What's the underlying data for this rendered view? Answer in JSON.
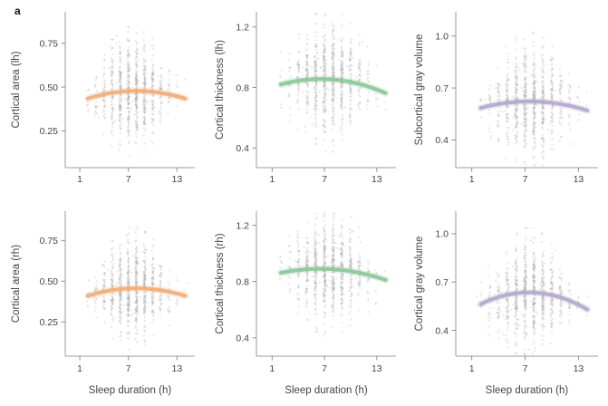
{
  "figure": {
    "panel_label": "a",
    "background": "#ffffff"
  },
  "colors": {
    "orange": "#f1ae78",
    "green": "#8dc79a",
    "purple": "#b4a8cc",
    "scatter": "#a9a9a9",
    "spine": "#b0b0b0",
    "tick": "#8f8f8f",
    "text": "#444444"
  },
  "chart_data": [
    {
      "type": "scatter",
      "ylabel": "Cortical area (lh)",
      "xlabel": "",
      "xtick_values": [
        1,
        7,
        13
      ],
      "xtick_labels": [
        "1",
        "7",
        "13"
      ],
      "xlim": [
        -0.8,
        15.2
      ],
      "ytick_values": [
        0.25,
        0.5,
        0.75
      ],
      "ytick_labels": [
        "0.25",
        "0.50",
        "0.75"
      ],
      "ylim": [
        0.04,
        0.93
      ],
      "curve_color": "orange",
      "fit_points": {
        "x": [
          2,
          7.8,
          14.3
        ],
        "y": [
          0.435,
          0.478,
          0.43
        ]
      },
      "scatter_hours": [
        2,
        3,
        4,
        5,
        6,
        7,
        8,
        9,
        10,
        11,
        12,
        13,
        14
      ],
      "scatter_center_hour": 7.5,
      "scatter_hour_sd": 2.2,
      "scatter_max_spread": 0.145,
      "scatter_n_max": 160,
      "seed": 11
    },
    {
      "type": "scatter",
      "ylabel": "Cortical thickness (lh)",
      "xlabel": "",
      "xtick_values": [
        1,
        7,
        13
      ],
      "xtick_labels": [
        "1",
        "7",
        "13"
      ],
      "xlim": [
        -0.8,
        15.2
      ],
      "ytick_values": [
        0.4,
        0.8,
        1.2
      ],
      "ytick_labels": [
        "0.4",
        "0.8",
        "1.2"
      ],
      "ylim": [
        0.27,
        1.3
      ],
      "curve_color": "green",
      "fit_points": {
        "x": [
          2,
          7.2,
          14.3
        ],
        "y": [
          0.82,
          0.855,
          0.755
        ]
      },
      "scatter_hours": [
        2,
        3,
        4,
        5,
        6,
        7,
        8,
        9,
        10,
        11,
        12,
        13,
        14
      ],
      "scatter_center_hour": 7.5,
      "scatter_hour_sd": 2.2,
      "scatter_max_spread": 0.185,
      "scatter_n_max": 160,
      "seed": 22
    },
    {
      "type": "scatter",
      "ylabel": "Subcortical gray volume",
      "xlabel": "",
      "xtick_values": [
        1,
        7,
        13
      ],
      "xtick_labels": [
        "1",
        "7",
        "13"
      ],
      "xlim": [
        -0.8,
        15.2
      ],
      "ytick_values": [
        0.4,
        0.7,
        1.0
      ],
      "ytick_labels": [
        "0.4",
        "0.7",
        "1.0"
      ],
      "ylim": [
        0.24,
        1.14
      ],
      "curve_color": "purple",
      "fit_points": {
        "x": [
          2,
          7.0,
          14.3
        ],
        "y": [
          0.585,
          0.622,
          0.565
        ]
      },
      "scatter_hours": [
        2,
        3,
        4,
        5,
        6,
        7,
        8,
        9,
        10,
        11,
        12,
        13,
        14
      ],
      "scatter_center_hour": 7.5,
      "scatter_hour_sd": 2.2,
      "scatter_max_spread": 0.155,
      "scatter_n_max": 160,
      "seed": 33
    },
    {
      "type": "scatter",
      "ylabel": "Cortical area (rh)",
      "xlabel": "Sleep duration (h)",
      "xtick_values": [
        1,
        7,
        13
      ],
      "xtick_labels": [
        "1",
        "7",
        "13"
      ],
      "xlim": [
        -0.8,
        15.2
      ],
      "ytick_values": [
        0.25,
        0.5,
        0.75
      ],
      "ytick_labels": [
        "0.25",
        "0.50",
        "0.75"
      ],
      "ylim": [
        0.04,
        0.93
      ],
      "curve_color": "orange",
      "fit_points": {
        "x": [
          2,
          7.5,
          14.3
        ],
        "y": [
          0.41,
          0.456,
          0.405
        ]
      },
      "scatter_hours": [
        2,
        3,
        4,
        5,
        6,
        7,
        8,
        9,
        10,
        11,
        12,
        13,
        14
      ],
      "scatter_center_hour": 7.5,
      "scatter_hour_sd": 2.2,
      "scatter_max_spread": 0.145,
      "scatter_n_max": 160,
      "seed": 44
    },
    {
      "type": "scatter",
      "ylabel": "Cortical thickness (rh)",
      "xlabel": "Sleep duration (h)",
      "xtick_values": [
        1,
        7,
        13
      ],
      "xtick_labels": [
        "1",
        "7",
        "13"
      ],
      "xlim": [
        -0.8,
        15.2
      ],
      "ytick_values": [
        0.4,
        0.8,
        1.2
      ],
      "ytick_labels": [
        "0.4",
        "0.8",
        "1.2"
      ],
      "ylim": [
        0.27,
        1.3
      ],
      "curve_color": "green",
      "fit_points": {
        "x": [
          2,
          7.0,
          14.3
        ],
        "y": [
          0.862,
          0.89,
          0.805
        ]
      },
      "scatter_hours": [
        2,
        3,
        4,
        5,
        6,
        7,
        8,
        9,
        10,
        11,
        12,
        13,
        14
      ],
      "scatter_center_hour": 7.5,
      "scatter_hour_sd": 2.2,
      "scatter_max_spread": 0.185,
      "scatter_n_max": 160,
      "seed": 55
    },
    {
      "type": "scatter",
      "ylabel": "Cortical gray volume",
      "xlabel": "Sleep duration (h)",
      "xtick_values": [
        1,
        7,
        13
      ],
      "xtick_labels": [
        "1",
        "7",
        "13"
      ],
      "xlim": [
        -0.8,
        15.2
      ],
      "ytick_values": [
        0.4,
        0.7,
        1.0
      ],
      "ytick_labels": [
        "0.4",
        "0.7",
        "1.0"
      ],
      "ylim": [
        0.24,
        1.14
      ],
      "curve_color": "purple",
      "fit_points": {
        "x": [
          2,
          7.2,
          14.3
        ],
        "y": [
          0.563,
          0.635,
          0.52
        ]
      },
      "scatter_hours": [
        2,
        3,
        4,
        5,
        6,
        7,
        8,
        9,
        10,
        11,
        12,
        13,
        14
      ],
      "scatter_center_hour": 7.5,
      "scatter_hour_sd": 2.2,
      "scatter_max_spread": 0.155,
      "scatter_n_max": 160,
      "seed": 66
    }
  ]
}
